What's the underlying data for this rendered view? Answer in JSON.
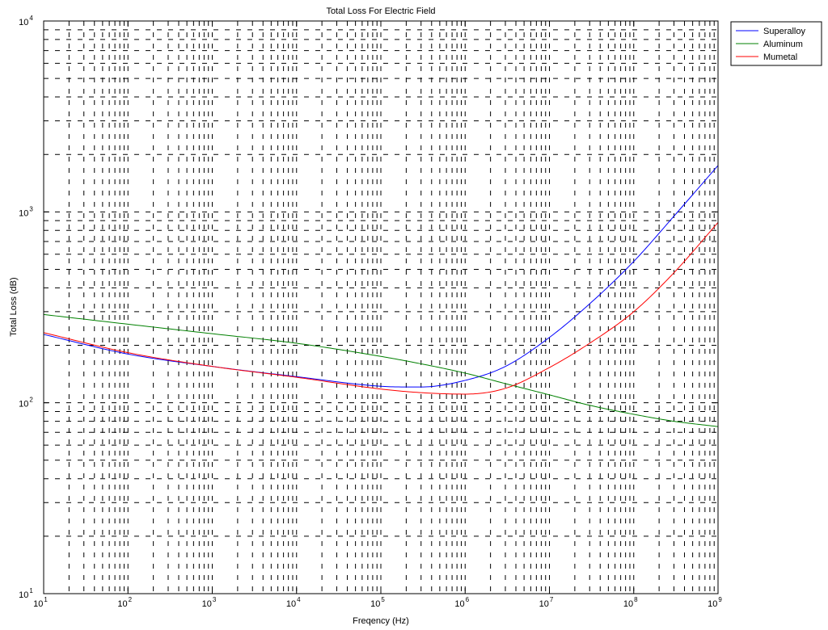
{
  "chart_data": {
    "type": "line",
    "title": "Total Loss For Electric Field",
    "xlabel": "Freqency (Hz)",
    "ylabel": "Total Loss (dB)",
    "xscale": "log",
    "yscale": "log",
    "xlim": [
      10,
      1000000000
    ],
    "ylim": [
      10,
      10000
    ],
    "grid": "on",
    "legend_position": "outside-top-right",
    "x_tick_labels": [
      {
        "base": "10",
        "exp": "1"
      },
      {
        "base": "10",
        "exp": "2"
      },
      {
        "base": "10",
        "exp": "3"
      },
      {
        "base": "10",
        "exp": "4"
      },
      {
        "base": "10",
        "exp": "5"
      },
      {
        "base": "10",
        "exp": "6"
      },
      {
        "base": "10",
        "exp": "7"
      },
      {
        "base": "10",
        "exp": "8"
      },
      {
        "base": "10",
        "exp": "9"
      }
    ],
    "y_tick_labels": [
      {
        "base": "10",
        "exp": "1"
      },
      {
        "base": "10",
        "exp": "2"
      },
      {
        "base": "10",
        "exp": "3"
      },
      {
        "base": "10",
        "exp": "4"
      }
    ],
    "x": [
      10,
      100,
      1000,
      10000,
      100000,
      300000,
      1000000,
      3000000,
      10000000,
      30000000,
      100000000,
      300000000,
      1000000000
    ],
    "series": [
      {
        "name": "Superalloy",
        "color": "#0000ff",
        "values": [
          228,
          180,
          155,
          137,
          122,
          121,
          131,
          155,
          220,
          330,
          550,
          950,
          1750
        ]
      },
      {
        "name": "Aluminum",
        "color": "#008000",
        "values": [
          290,
          258,
          230,
          205,
          175,
          160,
          143,
          126,
          110,
          97,
          87,
          80,
          75
        ]
      },
      {
        "name": "Mumetal",
        "color": "#ff0000",
        "values": [
          233,
          183,
          155,
          136,
          118,
          113,
          111,
          119,
          153,
          205,
          300,
          480,
          880
        ]
      }
    ]
  }
}
